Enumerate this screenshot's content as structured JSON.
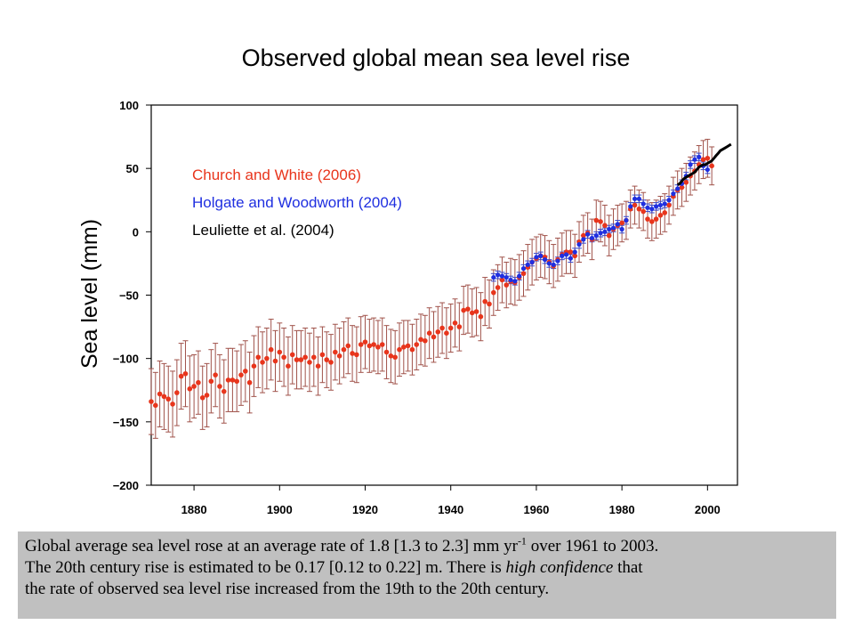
{
  "title": "Observed global mean sea level rise",
  "chart_data": {
    "type": "scatter",
    "title": "Observed global mean sea level rise",
    "xlabel": "",
    "ylabel": "Sea level (mm)",
    "xlim": [
      1870,
      2007
    ],
    "ylim": [
      -200,
      100
    ],
    "xticks": [
      1880,
      1900,
      1920,
      1940,
      1960,
      1980,
      2000
    ],
    "yticks": [
      100,
      50,
      0,
      -50,
      -100,
      -150,
      -200
    ],
    "ytick_labels": [
      "100",
      "50",
      "0",
      "−50",
      "−100",
      "−150",
      "−200"
    ],
    "grid": false,
    "legend": "top-left",
    "series": [
      {
        "name": "Church and White (2006)",
        "color": "#e8351c",
        "error_color": "#a0524a",
        "points": [
          [
            1870,
            -134,
            26
          ],
          [
            1871,
            -137,
            26
          ],
          [
            1872,
            -128,
            26
          ],
          [
            1873,
            -130,
            26
          ],
          [
            1874,
            -132,
            26
          ],
          [
            1875,
            -136,
            26
          ],
          [
            1876,
            -127,
            26
          ],
          [
            1877,
            -114,
            26
          ],
          [
            1878,
            -112,
            26
          ],
          [
            1879,
            -124,
            26
          ],
          [
            1880,
            -122,
            25
          ],
          [
            1881,
            -119,
            25
          ],
          [
            1882,
            -131,
            25
          ],
          [
            1883,
            -129,
            25
          ],
          [
            1884,
            -118,
            25
          ],
          [
            1885,
            -113,
            25
          ],
          [
            1886,
            -122,
            25
          ],
          [
            1887,
            -126,
            25
          ],
          [
            1888,
            -117,
            25
          ],
          [
            1889,
            -117,
            25
          ],
          [
            1890,
            -118,
            24
          ],
          [
            1891,
            -113,
            24
          ],
          [
            1892,
            -110,
            24
          ],
          [
            1893,
            -119,
            24
          ],
          [
            1894,
            -106,
            24
          ],
          [
            1895,
            -99,
            24
          ],
          [
            1896,
            -103,
            24
          ],
          [
            1897,
            -100,
            24
          ],
          [
            1898,
            -93,
            24
          ],
          [
            1899,
            -102,
            24
          ],
          [
            1900,
            -95,
            23
          ],
          [
            1901,
            -99,
            23
          ],
          [
            1902,
            -106,
            23
          ],
          [
            1903,
            -97,
            23
          ],
          [
            1904,
            -101,
            23
          ],
          [
            1905,
            -101,
            23
          ],
          [
            1906,
            -99,
            23
          ],
          [
            1907,
            -103,
            23
          ],
          [
            1908,
            -99,
            23
          ],
          [
            1909,
            -106,
            23
          ],
          [
            1910,
            -97,
            22
          ],
          [
            1911,
            -101,
            22
          ],
          [
            1912,
            -103,
            22
          ],
          [
            1913,
            -95,
            22
          ],
          [
            1914,
            -98,
            22
          ],
          [
            1915,
            -93,
            22
          ],
          [
            1916,
            -90,
            22
          ],
          [
            1917,
            -96,
            22
          ],
          [
            1918,
            -97,
            22
          ],
          [
            1919,
            -89,
            22
          ],
          [
            1920,
            -87,
            21
          ],
          [
            1921,
            -90,
            21
          ],
          [
            1922,
            -89,
            21
          ],
          [
            1923,
            -91,
            21
          ],
          [
            1924,
            -89,
            21
          ],
          [
            1925,
            -95,
            21
          ],
          [
            1926,
            -98,
            21
          ],
          [
            1927,
            -99,
            21
          ],
          [
            1928,
            -93,
            21
          ],
          [
            1929,
            -91,
            21
          ],
          [
            1930,
            -90,
            20
          ],
          [
            1931,
            -93,
            20
          ],
          [
            1932,
            -89,
            20
          ],
          [
            1933,
            -85,
            20
          ],
          [
            1934,
            -86,
            20
          ],
          [
            1935,
            -80,
            20
          ],
          [
            1936,
            -83,
            20
          ],
          [
            1937,
            -79,
            20
          ],
          [
            1938,
            -76,
            20
          ],
          [
            1939,
            -80,
            20
          ],
          [
            1940,
            -76,
            19
          ],
          [
            1941,
            -72,
            19
          ],
          [
            1942,
            -75,
            19
          ],
          [
            1943,
            -62,
            19
          ],
          [
            1944,
            -61,
            19
          ],
          [
            1945,
            -64,
            19
          ],
          [
            1946,
            -63,
            19
          ],
          [
            1947,
            -67,
            19
          ],
          [
            1948,
            -55,
            19
          ],
          [
            1949,
            -57,
            19
          ],
          [
            1950,
            -48,
            18
          ],
          [
            1951,
            -44,
            18
          ],
          [
            1952,
            -38,
            18
          ],
          [
            1953,
            -42,
            18
          ],
          [
            1954,
            -39,
            18
          ],
          [
            1955,
            -40,
            18
          ],
          [
            1956,
            -36,
            18
          ],
          [
            1957,
            -33,
            18
          ],
          [
            1958,
            -28,
            18
          ],
          [
            1959,
            -24,
            18
          ],
          [
            1960,
            -21,
            17
          ],
          [
            1961,
            -19,
            17
          ],
          [
            1962,
            -20,
            17
          ],
          [
            1963,
            -24,
            17
          ],
          [
            1964,
            -27,
            17
          ],
          [
            1965,
            -22,
            17
          ],
          [
            1966,
            -18,
            17
          ],
          [
            1967,
            -16,
            17
          ],
          [
            1968,
            -16,
            17
          ],
          [
            1969,
            -19,
            17
          ],
          [
            1970,
            -8,
            16
          ],
          [
            1971,
            -3,
            16
          ],
          [
            1972,
            -1,
            16
          ],
          [
            1973,
            -6,
            16
          ],
          [
            1974,
            9,
            16
          ],
          [
            1975,
            8,
            16
          ],
          [
            1976,
            5,
            16
          ],
          [
            1977,
            -3,
            16
          ],
          [
            1978,
            2,
            16
          ],
          [
            1979,
            5,
            16
          ],
          [
            1980,
            7,
            15
          ],
          [
            1981,
            9,
            15
          ],
          [
            1982,
            18,
            15
          ],
          [
            1983,
            21,
            15
          ],
          [
            1984,
            18,
            15
          ],
          [
            1985,
            16,
            15
          ],
          [
            1986,
            10,
            15
          ],
          [
            1987,
            8,
            15
          ],
          [
            1988,
            10,
            15
          ],
          [
            1989,
            13,
            15
          ],
          [
            1990,
            15,
            15
          ],
          [
            1991,
            21,
            15
          ],
          [
            1992,
            28,
            15
          ],
          [
            1993,
            33,
            15
          ],
          [
            1994,
            35,
            15
          ],
          [
            1995,
            39,
            15
          ],
          [
            1996,
            44,
            15
          ],
          [
            1997,
            48,
            15
          ],
          [
            1998,
            53,
            15
          ],
          [
            1999,
            57,
            15
          ],
          [
            2000,
            58,
            15
          ],
          [
            2001,
            52,
            15
          ]
        ]
      },
      {
        "name": "Holgate and Woodworth (2004)",
        "color": "#1f2fe0",
        "error_color": "#3a48c8",
        "points": [
          [
            1950,
            -36,
            3
          ],
          [
            1951,
            -34,
            3
          ],
          [
            1952,
            -35,
            3
          ],
          [
            1953,
            -36,
            3
          ],
          [
            1954,
            -38,
            3
          ],
          [
            1955,
            -39,
            3
          ],
          [
            1956,
            -35,
            3
          ],
          [
            1957,
            -29,
            3
          ],
          [
            1958,
            -26,
            3
          ],
          [
            1959,
            -24,
            3
          ],
          [
            1960,
            -20,
            3
          ],
          [
            1961,
            -19,
            3
          ],
          [
            1962,
            -22,
            3
          ],
          [
            1963,
            -25,
            3
          ],
          [
            1964,
            -26,
            3
          ],
          [
            1965,
            -23,
            3
          ],
          [
            1966,
            -19,
            3
          ],
          [
            1967,
            -18,
            3
          ],
          [
            1968,
            -21,
            3
          ],
          [
            1969,
            -16,
            3
          ],
          [
            1970,
            -10,
            3
          ],
          [
            1971,
            -6,
            3
          ],
          [
            1972,
            -2,
            3
          ],
          [
            1973,
            -5,
            3
          ],
          [
            1974,
            -3,
            3
          ],
          [
            1975,
            -1,
            3
          ],
          [
            1976,
            0,
            3
          ],
          [
            1977,
            2,
            3
          ],
          [
            1978,
            3,
            3
          ],
          [
            1979,
            6,
            3
          ],
          [
            1980,
            2,
            3
          ],
          [
            1981,
            9,
            3
          ],
          [
            1982,
            20,
            3
          ],
          [
            1983,
            26,
            3
          ],
          [
            1984,
            26,
            3
          ],
          [
            1985,
            22,
            3
          ],
          [
            1986,
            19,
            3
          ],
          [
            1987,
            18,
            3
          ],
          [
            1988,
            20,
            3
          ],
          [
            1989,
            21,
            3
          ],
          [
            1990,
            22,
            3
          ],
          [
            1991,
            25,
            3
          ],
          [
            1992,
            30,
            3
          ],
          [
            1993,
            34,
            3
          ],
          [
            1994,
            38,
            3
          ],
          [
            1995,
            44,
            3
          ],
          [
            1996,
            53,
            3
          ],
          [
            1997,
            57,
            3
          ],
          [
            1998,
            59,
            3
          ],
          [
            1999,
            52,
            3
          ],
          [
            2000,
            49,
            3
          ]
        ]
      },
      {
        "name": "Leuliette et al. (2004)",
        "color": "#000000",
        "error_color": "#000000",
        "points": [
          [
            1993.0,
            37,
            0
          ],
          [
            1993.5,
            38,
            0
          ],
          [
            1994.0,
            40,
            0
          ],
          [
            1994.5,
            42,
            0
          ],
          [
            1995.0,
            43,
            0
          ],
          [
            1995.5,
            44,
            0
          ],
          [
            1996.0,
            45,
            0
          ],
          [
            1996.5,
            46,
            0
          ],
          [
            1997.0,
            47,
            0
          ],
          [
            1997.5,
            49,
            0
          ],
          [
            1998.0,
            51,
            0
          ],
          [
            1998.5,
            52,
            0
          ],
          [
            1999.0,
            53,
            0
          ],
          [
            1999.5,
            53,
            0
          ],
          [
            2000.0,
            54,
            0
          ],
          [
            2000.5,
            55,
            0
          ],
          [
            2001.0,
            56,
            0
          ],
          [
            2001.5,
            58,
            0
          ],
          [
            2002.0,
            60,
            0
          ],
          [
            2002.5,
            62,
            0
          ],
          [
            2003.0,
            64,
            0
          ],
          [
            2003.5,
            65,
            0
          ],
          [
            2004.0,
            66,
            0
          ],
          [
            2004.5,
            67,
            0
          ],
          [
            2005.0,
            68,
            0
          ],
          [
            2005.5,
            69,
            0
          ]
        ]
      }
    ]
  },
  "caption": {
    "line1_a": "Global average sea level rose at an average rate of 1.8 [1.3 to 2.3] mm yr",
    "line1_sup": "-1",
    "line1_b": " over 1961 to 2003.",
    "line2": "The 20th century rise is estimated to be 0.17 [0.12 to 0.22] m. There is ",
    "line2_em": "high confidence",
    "line2_b": " that",
    "line3": "the rate of observed sea level rise increased from the 19th to the 20th century."
  }
}
